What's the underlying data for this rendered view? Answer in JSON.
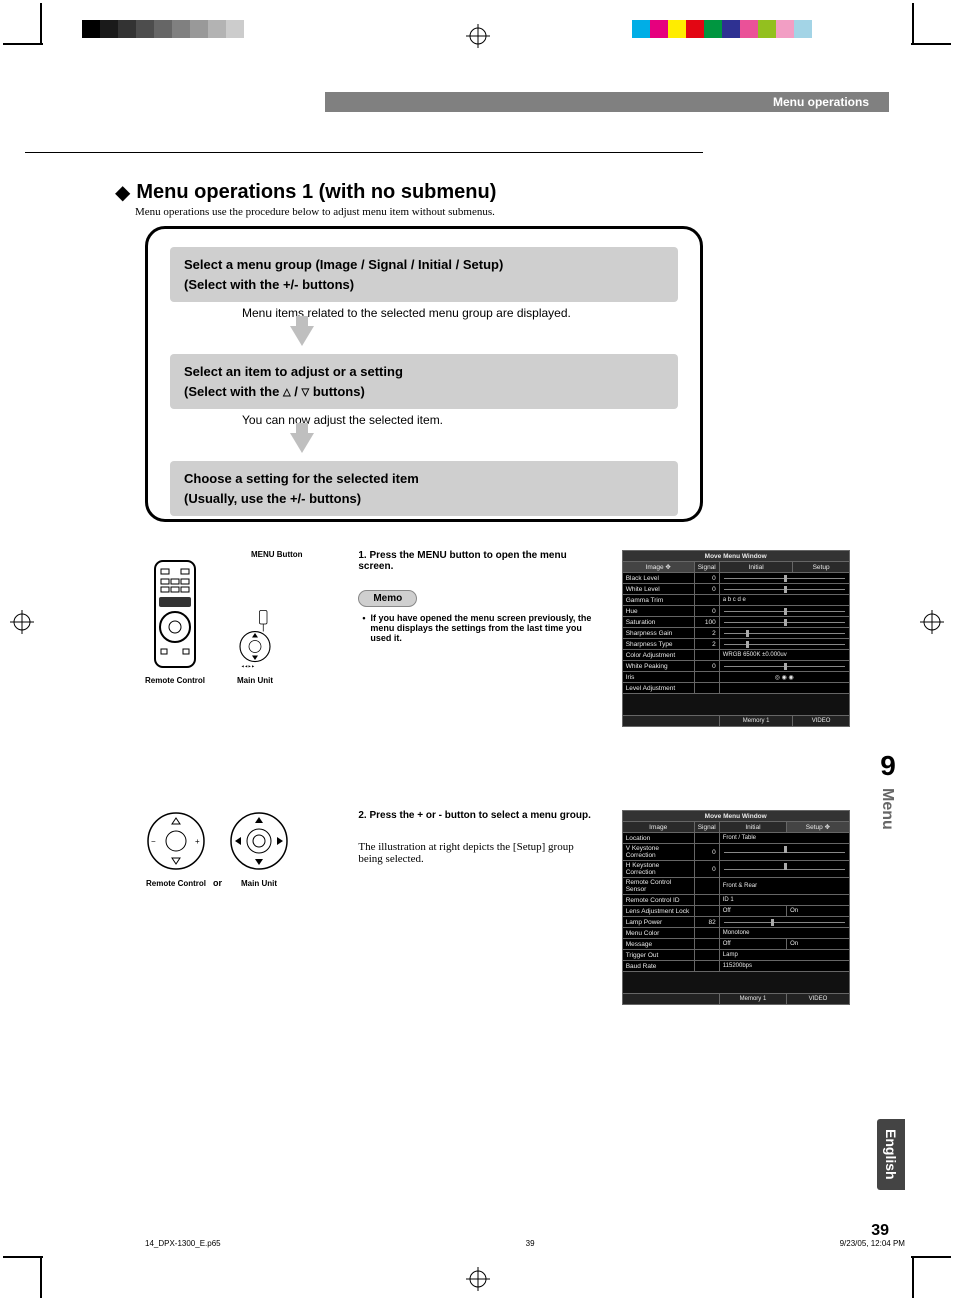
{
  "print_marks": {
    "gray_swatches": [
      "#000000",
      "#1a1a1a",
      "#333333",
      "#4d4d4d",
      "#666666",
      "#808080",
      "#999999",
      "#b3b3b3",
      "#cccccc"
    ],
    "color_swatches": [
      "#00aee6",
      "#e6007e",
      "#ffed00",
      "#e30613",
      "#009640",
      "#2e3192",
      "#ea5198",
      "#93c01f",
      "#f29ec4",
      "#a3d4e6"
    ]
  },
  "header": {
    "breadcrumb": "Menu operations"
  },
  "title": {
    "bullet": "◆",
    "text": "Menu operations 1 (with no submenu)"
  },
  "subtitle": "Menu operations use the procedure below to adjust menu item without submenus.",
  "flow": {
    "step1": {
      "line1": "Select a menu group (Image / Signal / Initial / Setup)",
      "line2": "(Select with the +/- buttons)"
    },
    "note1": "Menu items related to the selected menu group are displayed.",
    "step2": {
      "line1": "Select an item to adjust or a setting",
      "line2_pre": "(Select with the ",
      "line2_post": " buttons)"
    },
    "note2": "You can now adjust the selected item.",
    "step3": {
      "line1": "Choose a setting for the selected item",
      "line2": "(Usually, use the +/- buttons)"
    }
  },
  "controls": {
    "menu_button_label": "MENU Button",
    "remote_label": "Remote Control",
    "unit_label": "Main Unit",
    "or": "or"
  },
  "instruction1": {
    "num": "1.",
    "text": "Press the MENU button to open the menu screen."
  },
  "memo": {
    "label": "Memo",
    "bullet": "•",
    "text": "If you have opened the menu screen previously, the menu displays the settings from the last time you used it."
  },
  "instruction2": {
    "num": "2.",
    "text": "Press the + or - button to select a menu group."
  },
  "instruction2_sub": "The illustration at right depicts the [Setup] group being selected.",
  "osd1": {
    "title": "Move Menu Window",
    "tabs": [
      "Image",
      "Signal",
      "Initial",
      "Setup"
    ],
    "active_tab": 0,
    "rows": [
      {
        "label": "Black Level",
        "val": "0",
        "slider": 50
      },
      {
        "label": "White Level",
        "val": "0",
        "slider": 50
      },
      {
        "label": "Gamma Trim",
        "val": "",
        "opts": "a   b   c   d   e"
      },
      {
        "label": "Hue",
        "val": "0",
        "slider": 50
      },
      {
        "label": "Saturation",
        "val": "100",
        "slider": 50
      },
      {
        "label": "Sharpness Gain",
        "val": "2",
        "slider": 20
      },
      {
        "label": "Sharpness Type",
        "val": "2",
        "slider": 20
      },
      {
        "label": "Color Adjustment",
        "val": "",
        "text": "WRGB          6500K ±0.000uv"
      },
      {
        "label": "White Peaking",
        "val": "0",
        "slider": 50
      },
      {
        "label": "Iris",
        "val": "",
        "icons": "◎        ◉        ◉"
      },
      {
        "label": "Level Adjustment",
        "val": ""
      }
    ],
    "footer": [
      "Memory 1",
      "VIDEO"
    ]
  },
  "osd2": {
    "title": "Move Menu Window",
    "tabs": [
      "Image",
      "Signal",
      "Initial",
      "Setup"
    ],
    "active_tab": 3,
    "rows": [
      {
        "label": "Location",
        "val": "",
        "text": "Front / Table"
      },
      {
        "label": "V Keystone Correction",
        "val": "0",
        "slider": 50
      },
      {
        "label": "H Keystone Correction",
        "val": "0",
        "slider": 50
      },
      {
        "label": "Remote Control Sensor",
        "val": "",
        "text": "Front & Rear"
      },
      {
        "label": "Remote Control ID",
        "val": "",
        "text": "ID 1"
      },
      {
        "label": "Lens Adjustment Lock",
        "val": "",
        "opts2": [
          "Off",
          "On"
        ]
      },
      {
        "label": "Lamp Power",
        "val": "82",
        "slider": 40
      },
      {
        "label": "Menu Color",
        "val": "",
        "text": "Monotone"
      },
      {
        "label": "Message",
        "val": "",
        "opts2": [
          "Off",
          "On"
        ]
      },
      {
        "label": "Trigger Out",
        "val": "",
        "text": "Lamp"
      },
      {
        "label": "Baud Rate",
        "val": "",
        "text": "115200bps"
      }
    ],
    "footer": [
      "Memory 1",
      "VIDEO"
    ]
  },
  "sidebar": {
    "chapter": "9",
    "chapter_label": "Menu",
    "language": "English"
  },
  "page_number": "39",
  "footer": {
    "file": "14_DPX-1300_E.p65",
    "folio": "39",
    "timestamp": "9/23/05, 12:04 PM"
  }
}
